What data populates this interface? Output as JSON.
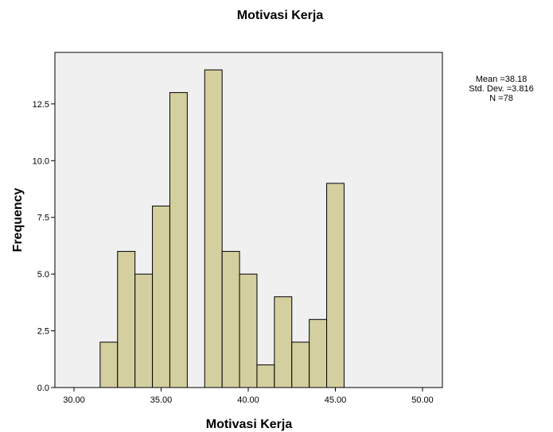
{
  "chart_data": {
    "type": "bar",
    "title": "Motivasi Kerja",
    "xlabel": "Motivasi Kerja",
    "ylabel": "Frequency",
    "xlim": [
      29,
      51
    ],
    "ylim": [
      0,
      14.0
    ],
    "x_ticks": [
      {
        "value": 30,
        "label": "30.00"
      },
      {
        "value": 35,
        "label": "35.00"
      },
      {
        "value": 40,
        "label": "40.00"
      },
      {
        "value": 45,
        "label": "45.00"
      },
      {
        "value": 50,
        "label": "50.00"
      }
    ],
    "y_ticks": [
      {
        "value": 0,
        "label": "0.0"
      },
      {
        "value": 2.5,
        "label": "2.5"
      },
      {
        "value": 5,
        "label": "5.0"
      },
      {
        "value": 7.5,
        "label": "7.5"
      },
      {
        "value": 10,
        "label": "10.0"
      },
      {
        "value": 12.5,
        "label": "12.5"
      }
    ],
    "bin_width": 1,
    "bins": [
      {
        "start": 31.5,
        "end": 32.5,
        "value": 2
      },
      {
        "start": 32.5,
        "end": 33.5,
        "value": 6
      },
      {
        "start": 33.5,
        "end": 34.5,
        "value": 5
      },
      {
        "start": 34.5,
        "end": 35.5,
        "value": 8
      },
      {
        "start": 35.5,
        "end": 36.5,
        "value": 13
      },
      {
        "start": 36.5,
        "end": 37.5,
        "value": 0
      },
      {
        "start": 37.5,
        "end": 38.5,
        "value": 14
      },
      {
        "start": 38.5,
        "end": 39.5,
        "value": 6
      },
      {
        "start": 39.5,
        "end": 40.5,
        "value": 5
      },
      {
        "start": 40.5,
        "end": 41.5,
        "value": 1
      },
      {
        "start": 41.5,
        "end": 42.5,
        "value": 4
      },
      {
        "start": 42.5,
        "end": 43.5,
        "value": 2
      },
      {
        "start": 43.5,
        "end": 44.5,
        "value": 3
      },
      {
        "start": 44.5,
        "end": 45.5,
        "value": 9
      }
    ],
    "stats": {
      "mean": "Mean =38.18",
      "std_dev": "Std. Dev. =3.816",
      "n": "N =78"
    },
    "grid": false,
    "legend": "none",
    "colors": {
      "bar_fill": "#D4CF9F",
      "bar_stroke": "#000000",
      "plot_background": "#F0F0F0",
      "frame": "#000000"
    }
  }
}
